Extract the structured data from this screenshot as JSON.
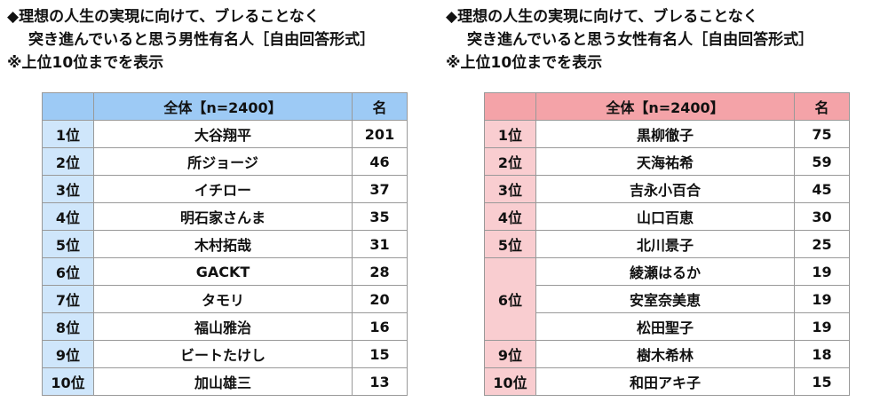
{
  "left": {
    "title": [
      "◆理想の人生の実現に向けて、ブレることなく",
      "突き進んでいると思う男性有名人［自由回答形式］",
      "※上位10位までを表示"
    ],
    "header": [
      "全体【n=2400】",
      "名"
    ],
    "groups": [
      {
        "rank": "1位",
        "entries": [
          [
            "大谷翔平",
            201
          ]
        ]
      },
      {
        "rank": "2位",
        "entries": [
          [
            "所ジョージ",
            46
          ]
        ]
      },
      {
        "rank": "3位",
        "entries": [
          [
            "イチロー",
            37
          ]
        ]
      },
      {
        "rank": "4位",
        "entries": [
          [
            "明石家さんま",
            35
          ]
        ]
      },
      {
        "rank": "5位",
        "entries": [
          [
            "木村拓哉",
            31
          ]
        ]
      },
      {
        "rank": "6位",
        "entries": [
          [
            "GACKT",
            28
          ]
        ]
      },
      {
        "rank": "7位",
        "entries": [
          [
            "タモリ",
            20
          ]
        ]
      },
      {
        "rank": "8位",
        "entries": [
          [
            "福山雅治",
            16
          ]
        ]
      },
      {
        "rank": "9位",
        "entries": [
          [
            "ビートたけし",
            15
          ]
        ]
      },
      {
        "rank": "10位",
        "entries": [
          [
            "加山雄三",
            13
          ]
        ]
      }
    ]
  },
  "right": {
    "title": [
      "◆理想の人生の実現に向けて、ブレることなく",
      "突き進んでいると思う女性有名人［自由回答形式］",
      "※上位10位までを表示"
    ],
    "header": [
      "全体【n=2400】",
      "名"
    ],
    "groups": [
      {
        "rank": "1位",
        "entries": [
          [
            "黒柳徹子",
            75
          ]
        ]
      },
      {
        "rank": "2位",
        "entries": [
          [
            "天海祐希",
            59
          ]
        ]
      },
      {
        "rank": "3位",
        "entries": [
          [
            "吉永小百合",
            45
          ]
        ]
      },
      {
        "rank": "4位",
        "entries": [
          [
            "山口百恵",
            30
          ]
        ]
      },
      {
        "rank": "5位",
        "entries": [
          [
            "北川景子",
            25
          ]
        ]
      },
      {
        "rank": "6位",
        "entries": [
          [
            "綾瀬はるか",
            19
          ],
          [
            "安室奈美恵",
            19
          ],
          [
            "松田聖子",
            19
          ]
        ]
      },
      {
        "rank": "9位",
        "entries": [
          [
            "樹木希林",
            18
          ]
        ]
      },
      {
        "rank": "10位",
        "entries": [
          [
            "和田アキ子",
            15
          ]
        ]
      }
    ]
  }
}
